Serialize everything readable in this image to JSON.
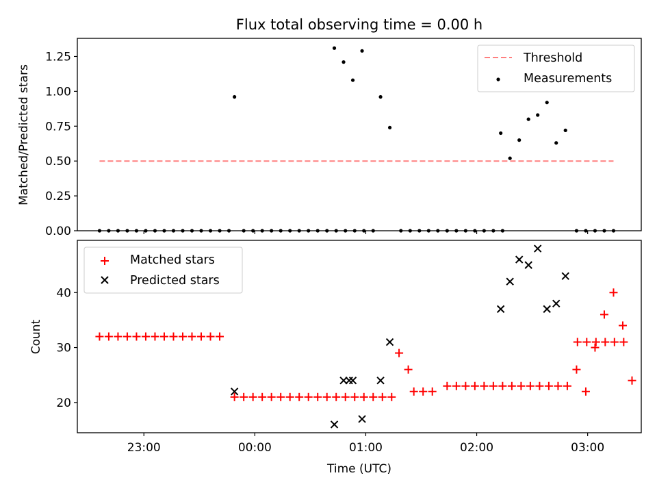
{
  "chart_data": {
    "title": "Flux total observing time = 0.00 h",
    "xlabel": "Time (UTC)",
    "x_unit": "time of day (UTC), HH:MM:SS",
    "xlim": [
      "22:24:00",
      "03:29:00"
    ],
    "x_ticks": [
      "23:00",
      "00:00",
      "01:00",
      "02:00",
      "03:00"
    ],
    "panels": [
      {
        "type": "scatter",
        "ylabel": "Matched/Predicted stars",
        "ylim": [
          0,
          1.38
        ],
        "y_ticks": [
          "0.00",
          "0.25",
          "0.50",
          "0.75",
          "1.00",
          "1.25"
        ],
        "legend_position": "upper-right",
        "threshold": {
          "name": "Threshold",
          "color": "#ff7f7f",
          "style": "dashed",
          "y": 0.5,
          "x_start": "22:36:00",
          "x_end": "03:14:00"
        },
        "series": [
          {
            "name": "Measurements",
            "color": "#000000",
            "marker": "dot",
            "points": [
              [
                "22:36:00",
                0
              ],
              [
                "22:41:00",
                0
              ],
              [
                "22:46:00",
                0
              ],
              [
                "22:51:00",
                0
              ],
              [
                "22:56:00",
                0
              ],
              [
                "23:01:00",
                0
              ],
              [
                "23:06:00",
                0
              ],
              [
                "23:11:00",
                0
              ],
              [
                "23:16:00",
                0
              ],
              [
                "23:21:00",
                0
              ],
              [
                "23:26:00",
                0
              ],
              [
                "23:31:00",
                0
              ],
              [
                "23:36:00",
                0
              ],
              [
                "23:41:00",
                0
              ],
              [
                "23:46:00",
                0
              ],
              [
                "23:49:00",
                0.96
              ],
              [
                "23:54:00",
                0
              ],
              [
                "23:59:00",
                0
              ],
              [
                "00:04:00",
                0
              ],
              [
                "00:09:00",
                0
              ],
              [
                "00:14:00",
                0
              ],
              [
                "00:19:00",
                0
              ],
              [
                "00:24:00",
                0
              ],
              [
                "00:29:00",
                0
              ],
              [
                "00:34:00",
                0
              ],
              [
                "00:39:00",
                0
              ],
              [
                "00:44:00",
                0
              ],
              [
                "00:49:00",
                0
              ],
              [
                "00:54:00",
                0
              ],
              [
                "00:59:00",
                0
              ],
              [
                "01:04:00",
                0
              ],
              [
                "01:19:00",
                0
              ],
              [
                "01:24:00",
                0
              ],
              [
                "01:29:00",
                0
              ],
              [
                "01:34:00",
                0
              ],
              [
                "01:39:00",
                0
              ],
              [
                "01:44:00",
                0
              ],
              [
                "01:49:00",
                0
              ],
              [
                "01:54:00",
                0
              ],
              [
                "01:59:00",
                0
              ],
              [
                "02:04:00",
                0
              ],
              [
                "02:09:00",
                0
              ],
              [
                "02:14:00",
                0
              ],
              [
                "02:54:00",
                0
              ],
              [
                "02:59:00",
                0
              ],
              [
                "03:04:00",
                0
              ],
              [
                "03:09:00",
                0
              ],
              [
                "03:14:00",
                0
              ],
              [
                "00:43:00",
                1.31
              ],
              [
                "00:48:00",
                1.21
              ],
              [
                "00:53:00",
                1.08
              ],
              [
                "00:58:00",
                1.29
              ],
              [
                "01:08:00",
                0.96
              ],
              [
                "01:13:00",
                0.74
              ],
              [
                "02:13:00",
                0.7
              ],
              [
                "02:18:00",
                0.52
              ],
              [
                "02:23:00",
                0.65
              ],
              [
                "02:28:00",
                0.8
              ],
              [
                "02:33:00",
                0.83
              ],
              [
                "02:38:00",
                0.92
              ],
              [
                "02:43:00",
                0.63
              ],
              [
                "02:48:00",
                0.72
              ]
            ]
          }
        ]
      },
      {
        "type": "scatter",
        "ylabel": "Count",
        "ylim": [
          14.5,
          49.5
        ],
        "y_ticks": [
          "20",
          "30",
          "40"
        ],
        "legend_position": "upper-left",
        "series": [
          {
            "name": "Matched stars",
            "color": "#ff0000",
            "marker": "plus",
            "points": [
              [
                "22:36:00",
                32
              ],
              [
                "22:41:00",
                32
              ],
              [
                "22:46:00",
                32
              ],
              [
                "22:51:00",
                32
              ],
              [
                "22:56:00",
                32
              ],
              [
                "23:01:00",
                32
              ],
              [
                "23:06:00",
                32
              ],
              [
                "23:11:00",
                32
              ],
              [
                "23:16:00",
                32
              ],
              [
                "23:21:00",
                32
              ],
              [
                "23:26:00",
                32
              ],
              [
                "23:31:00",
                32
              ],
              [
                "23:36:00",
                32
              ],
              [
                "23:41:00",
                32
              ],
              [
                "23:49:00",
                21
              ],
              [
                "23:54:00",
                21
              ],
              [
                "23:59:00",
                21
              ],
              [
                "00:04:00",
                21
              ],
              [
                "00:09:00",
                21
              ],
              [
                "00:14:00",
                21
              ],
              [
                "00:19:00",
                21
              ],
              [
                "00:24:00",
                21
              ],
              [
                "00:29:00",
                21
              ],
              [
                "00:34:00",
                21
              ],
              [
                "00:39:00",
                21
              ],
              [
                "00:44:00",
                21
              ],
              [
                "00:49:00",
                21
              ],
              [
                "00:54:00",
                21
              ],
              [
                "00:59:00",
                21
              ],
              [
                "01:04:00",
                21
              ],
              [
                "01:09:00",
                21
              ],
              [
                "01:14:00",
                21
              ],
              [
                "01:18:00",
                29
              ],
              [
                "01:23:00",
                26
              ],
              [
                "01:26:00",
                22
              ],
              [
                "01:31:00",
                22
              ],
              [
                "01:36:00",
                22
              ],
              [
                "01:44:00",
                23
              ],
              [
                "01:49:00",
                23
              ],
              [
                "01:54:00",
                23
              ],
              [
                "01:59:00",
                23
              ],
              [
                "02:04:00",
                23
              ],
              [
                "02:09:00",
                23
              ],
              [
                "02:14:00",
                23
              ],
              [
                "02:19:00",
                23
              ],
              [
                "02:24:00",
                23
              ],
              [
                "02:29:00",
                23
              ],
              [
                "02:34:00",
                23
              ],
              [
                "02:39:00",
                23
              ],
              [
                "02:44:00",
                23
              ],
              [
                "02:49:00",
                23
              ],
              [
                "02:54:00",
                26
              ],
              [
                "02:59:00",
                22
              ],
              [
                "03:04:00",
                30
              ],
              [
                "03:09:00",
                36
              ],
              [
                "03:14:00",
                40
              ],
              [
                "03:19:00",
                34
              ],
              [
                "03:24:00",
                24
              ],
              [
                "02:54:30",
                31
              ],
              [
                "02:59:30",
                31
              ],
              [
                "03:04:30",
                31
              ],
              [
                "03:09:30",
                31
              ],
              [
                "03:14:30",
                31
              ],
              [
                "03:19:30",
                31
              ]
            ]
          },
          {
            "name": "Predicted stars",
            "color": "#000000",
            "marker": "x",
            "points": [
              [
                "23:49:00",
                22
              ],
              [
                "00:43:00",
                16
              ],
              [
                "00:48:00",
                24
              ],
              [
                "00:51:00",
                24
              ],
              [
                "00:53:00",
                24
              ],
              [
                "00:58:00",
                17
              ],
              [
                "01:08:00",
                24
              ],
              [
                "01:13:00",
                31
              ],
              [
                "02:13:00",
                37
              ],
              [
                "02:18:00",
                42
              ],
              [
                "02:23:00",
                46
              ],
              [
                "02:28:00",
                45
              ],
              [
                "02:33:00",
                48
              ],
              [
                "02:38:00",
                37
              ],
              [
                "02:43:00",
                38
              ],
              [
                "02:48:00",
                43
              ]
            ]
          }
        ]
      }
    ]
  }
}
